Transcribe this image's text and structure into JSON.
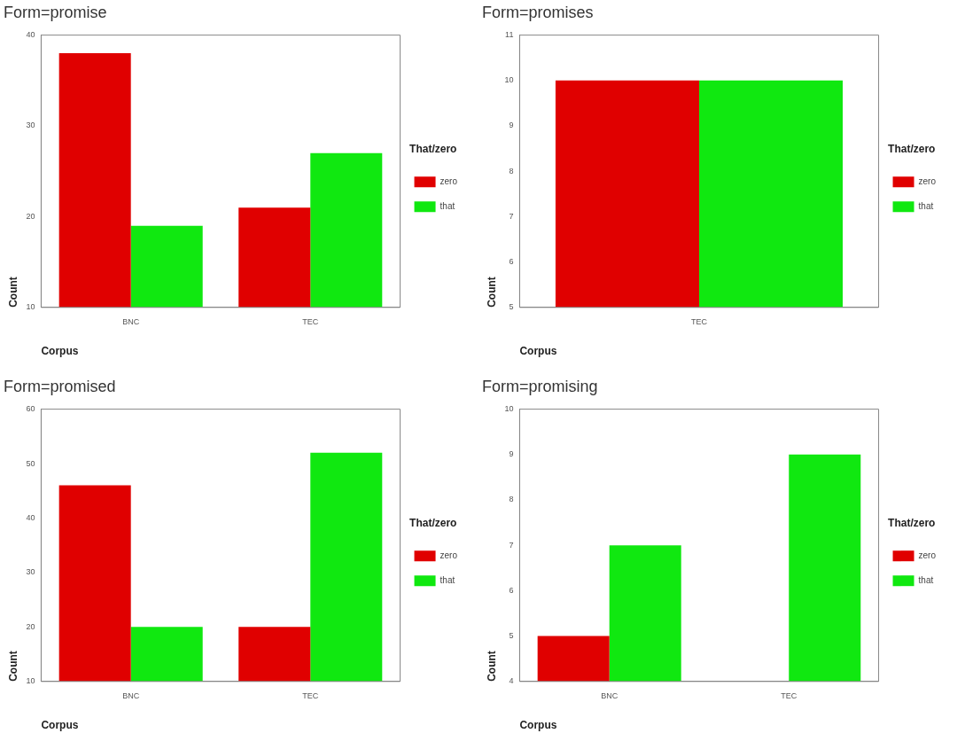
{
  "chart_data": [
    {
      "type": "bar",
      "title": "Form=promise",
      "xlabel": "Corpus",
      "ylabel": "Count",
      "legend_title": "That/zero",
      "legend": "right",
      "categories": [
        "BNC",
        "TEC"
      ],
      "series": [
        {
          "name": "zero",
          "color": "#e00000",
          "values": [
            38,
            21
          ]
        },
        {
          "name": "that",
          "color": "#10e810",
          "values": [
            19,
            27
          ]
        }
      ],
      "ylim": [
        10,
        40
      ],
      "yticks": [
        10,
        20,
        30,
        40
      ]
    },
    {
      "type": "bar",
      "title": "Form=promises",
      "xlabel": "Corpus",
      "ylabel": "Count",
      "legend_title": "That/zero",
      "legend": "right",
      "categories": [
        "TEC"
      ],
      "series": [
        {
          "name": "zero",
          "color": "#e00000",
          "values": [
            10
          ]
        },
        {
          "name": "that",
          "color": "#10e810",
          "values": [
            10
          ]
        }
      ],
      "ylim": [
        5,
        11
      ],
      "yticks": [
        5,
        6,
        7,
        8,
        9,
        10,
        11
      ]
    },
    {
      "type": "bar",
      "title": "Form=promised",
      "xlabel": "Corpus",
      "ylabel": "Count",
      "legend_title": "That/zero",
      "legend": "right",
      "categories": [
        "BNC",
        "TEC"
      ],
      "series": [
        {
          "name": "zero",
          "color": "#e00000",
          "values": [
            46,
            20
          ]
        },
        {
          "name": "that",
          "color": "#10e810",
          "values": [
            20,
            52
          ]
        }
      ],
      "ylim": [
        10,
        60
      ],
      "yticks": [
        10,
        20,
        30,
        40,
        50,
        60
      ]
    },
    {
      "type": "bar",
      "title": "Form=promising",
      "xlabel": "Corpus",
      "ylabel": "Count",
      "legend_title": "That/zero",
      "legend": "right",
      "categories": [
        "BNC",
        "TEC"
      ],
      "series": [
        {
          "name": "zero",
          "color": "#e00000",
          "values": [
            5,
            null
          ]
        },
        {
          "name": "that",
          "color": "#10e810",
          "values": [
            7,
            9
          ]
        }
      ],
      "ylim": [
        4,
        10
      ],
      "yticks": [
        4,
        5,
        6,
        7,
        8,
        9,
        10
      ]
    }
  ]
}
